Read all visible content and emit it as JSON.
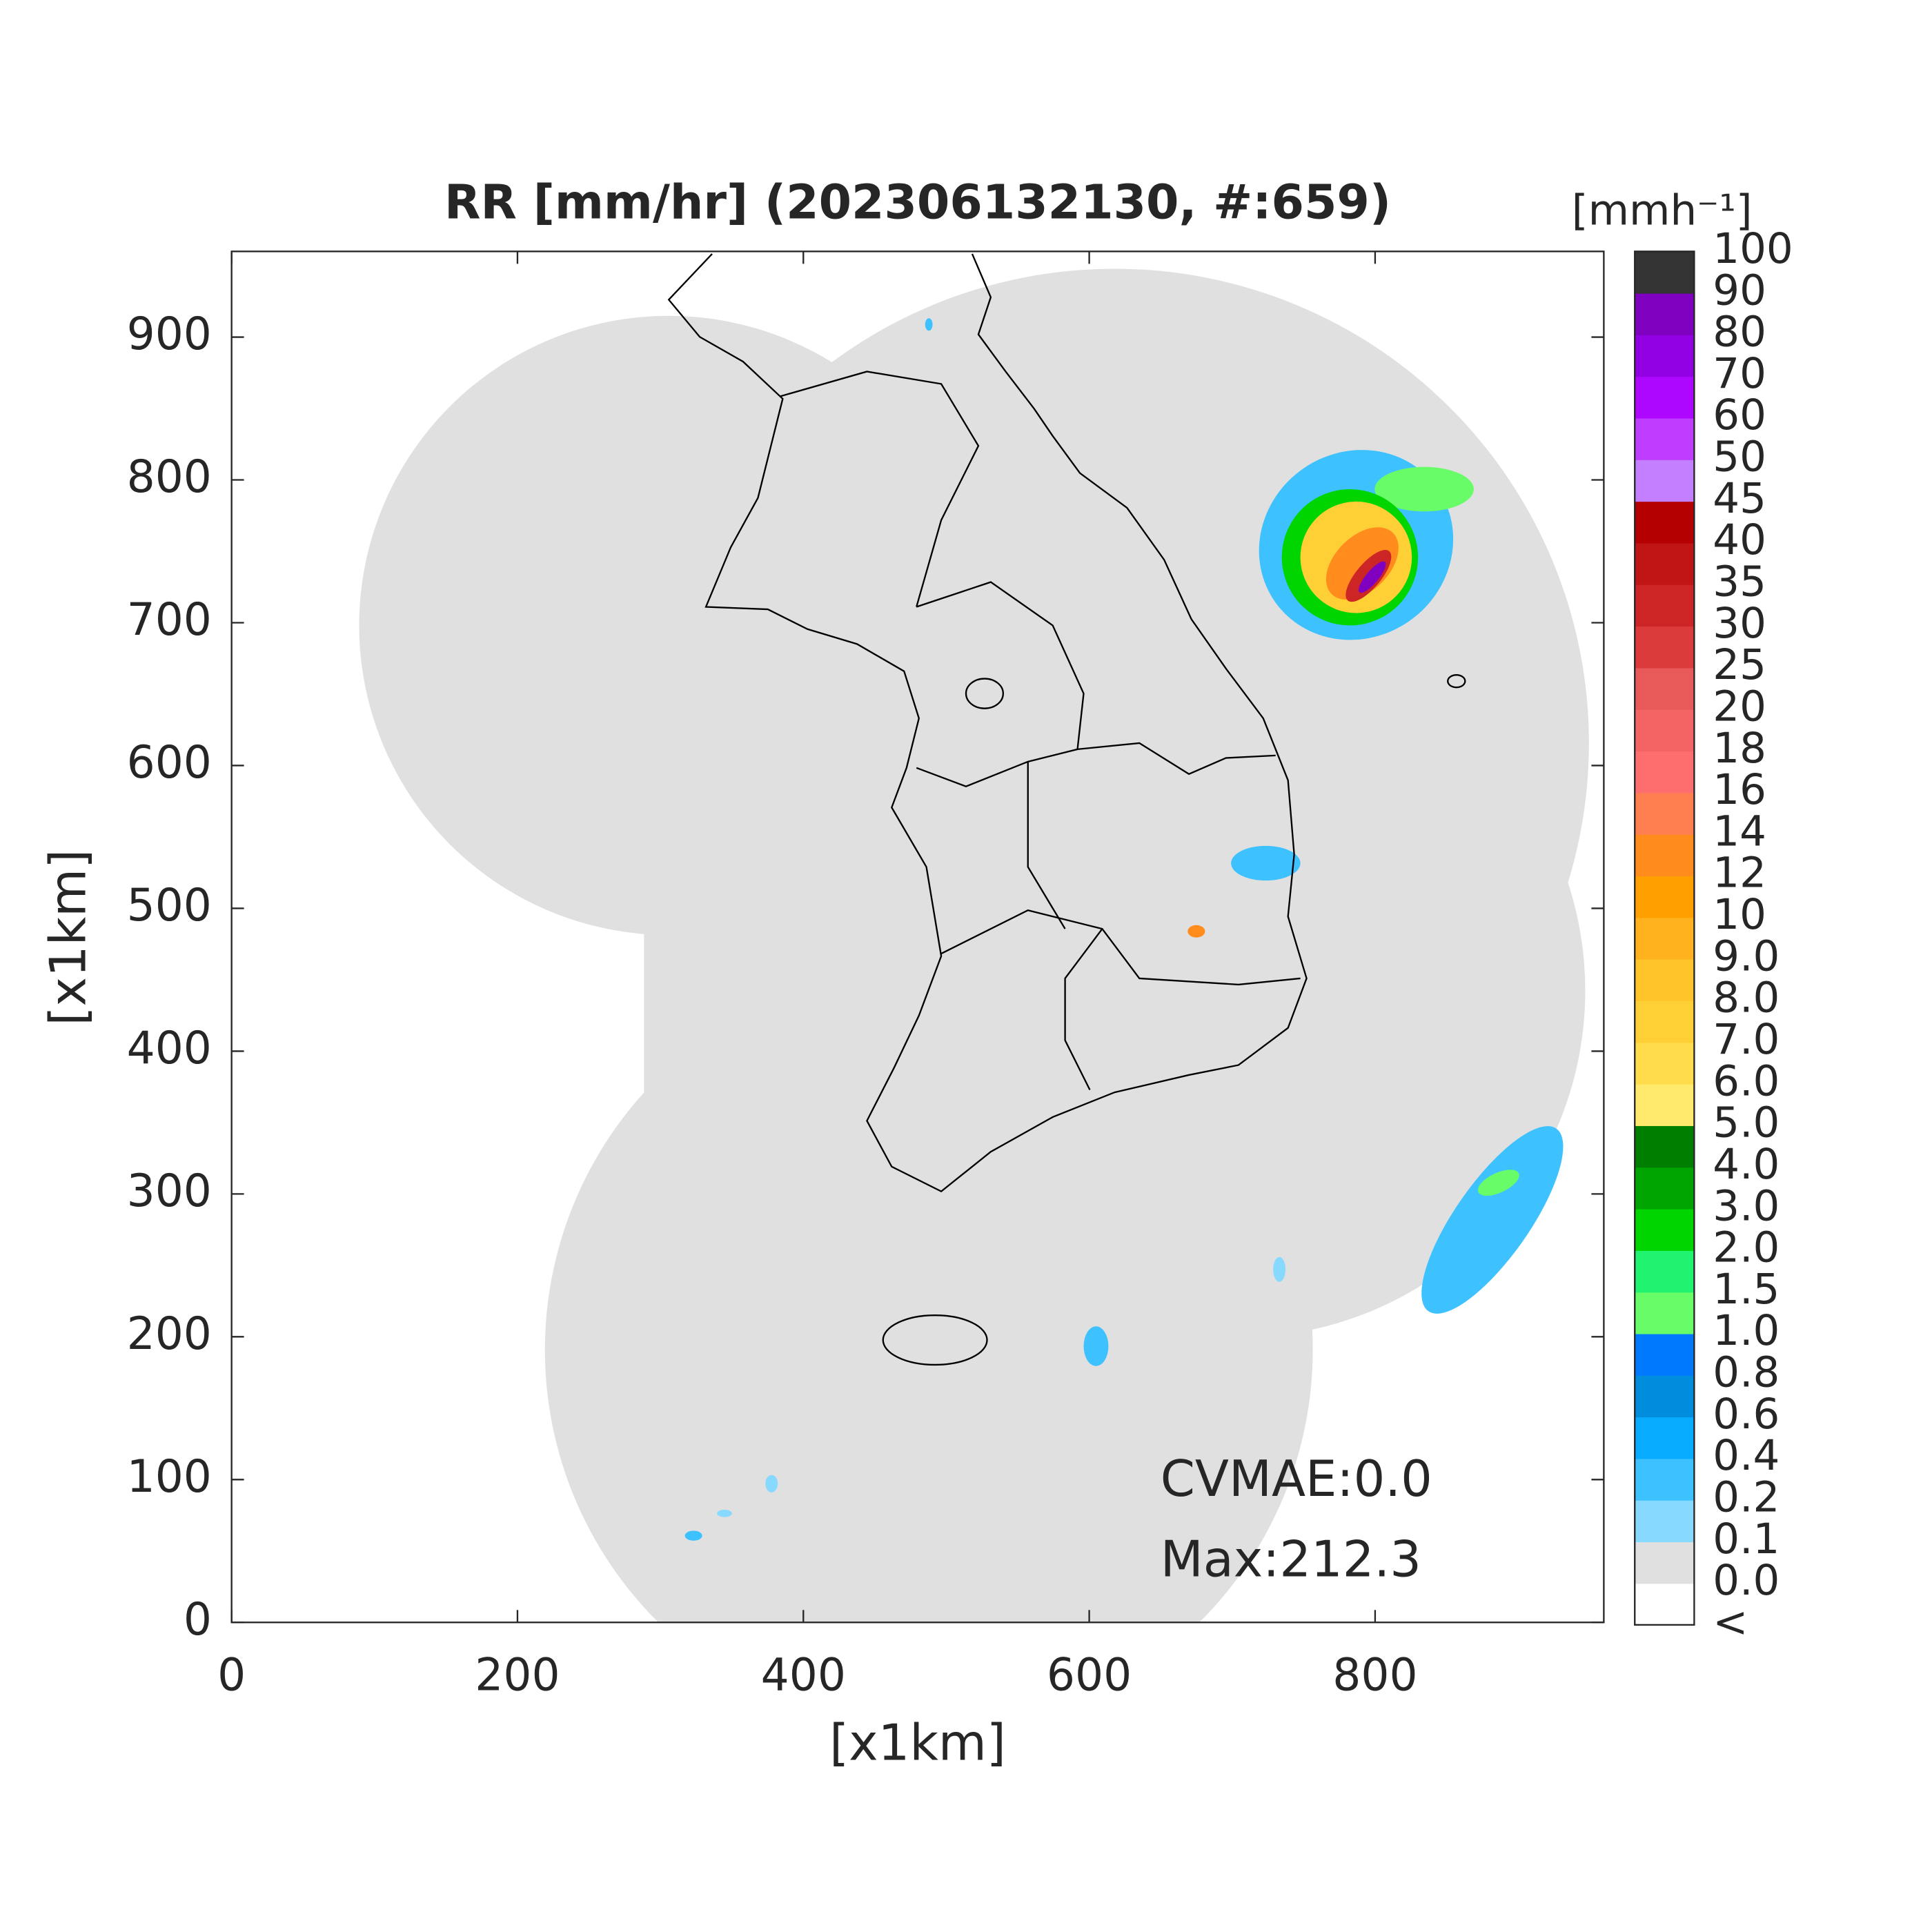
{
  "chart_data": {
    "type": "map",
    "title": "RR [mm/hr] (202306132130, #:659)",
    "x_label": "[x1km]",
    "y_label": "[x1km]",
    "xlim": [
      0,
      960
    ],
    "ylim": [
      0,
      960
    ],
    "xticks": [
      0,
      200,
      400,
      600,
      800
    ],
    "yticks": [
      0,
      100,
      200,
      300,
      400,
      500,
      600,
      700,
      800,
      900
    ],
    "grid": false,
    "colorbar_unit": "[mmh⁻¹]",
    "colorbar_labels": [
      "<",
      "0.0",
      "0.1",
      "0.2",
      "0.4",
      "0.6",
      "0.8",
      "1.0",
      "1.5",
      "2.0",
      "3.0",
      "4.0",
      "5.0",
      "6.0",
      "7.0",
      "8.0",
      "9.0",
      "10",
      "12",
      "14",
      "16",
      "18",
      "20",
      "25",
      "30",
      "35",
      "40",
      "45",
      "50",
      "60",
      "70",
      "80",
      "90",
      "100"
    ],
    "colorbar_colors": [
      "#ffffff",
      "#e0e0e0",
      "#87d9ff",
      "#3ec1ff",
      "#07abff",
      "#008dde",
      "#0079ff",
      "#69fc69",
      "#1ff36f",
      "#00d500",
      "#00a400",
      "#007e00",
      "#ffea6e",
      "#ffdc4c",
      "#ffd035",
      "#ffc42a",
      "#ffb21d",
      "#ffa000",
      "#ff8c1d",
      "#ff7f50",
      "#ff6e6e",
      "#f56464",
      "#e85a5a",
      "#dc3b3b",
      "#cd2525",
      "#bf1515",
      "#b40000",
      "#c37fff",
      "#bf3dff",
      "#ad07ff",
      "#9200e4",
      "#7f00bf",
      "#333333"
    ],
    "annotations": [
      "CVMAE:0.0",
      "Max:212.3"
    ]
  }
}
